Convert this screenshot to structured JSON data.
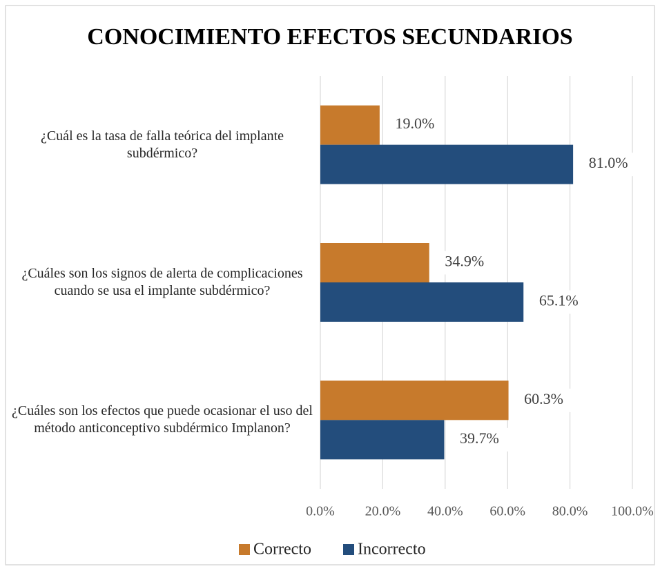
{
  "chart_data": {
    "type": "bar",
    "orientation": "horizontal",
    "title": "CONOCIMIENTO EFECTOS SECUNDARIOS",
    "categories": [
      "¿Cuál es la tasa de falla teórica del implante subdérmico?",
      "¿Cuáles son los signos de alerta de complicaciones cuando se usa el implante subdérmico?",
      "¿Cuáles son los efectos que puede ocasionar el uso del método anticonceptivo subdérmico Implanon?"
    ],
    "series": [
      {
        "name": "Correcto",
        "color": "#c77a2c",
        "values": [
          19.0,
          34.9,
          60.3
        ],
        "value_labels": [
          "19.0%",
          "34.9%",
          "60.3%"
        ]
      },
      {
        "name": "Incorrecto",
        "color": "#234d7c",
        "values": [
          81.0,
          65.1,
          39.7
        ],
        "value_labels": [
          "81.0%",
          "65.1%",
          "39.7%"
        ]
      }
    ],
    "xlim": [
      0,
      100
    ],
    "xticks": [
      {
        "value": 0,
        "label": "0.0%"
      },
      {
        "value": 20,
        "label": "20.0%"
      },
      {
        "value": 40,
        "label": "40.0%"
      },
      {
        "value": 60,
        "label": "60.0%"
      },
      {
        "value": 80,
        "label": "80.0%"
      },
      {
        "value": 100,
        "label": "100.0%"
      }
    ],
    "grid": true,
    "legend": "bottom"
  }
}
